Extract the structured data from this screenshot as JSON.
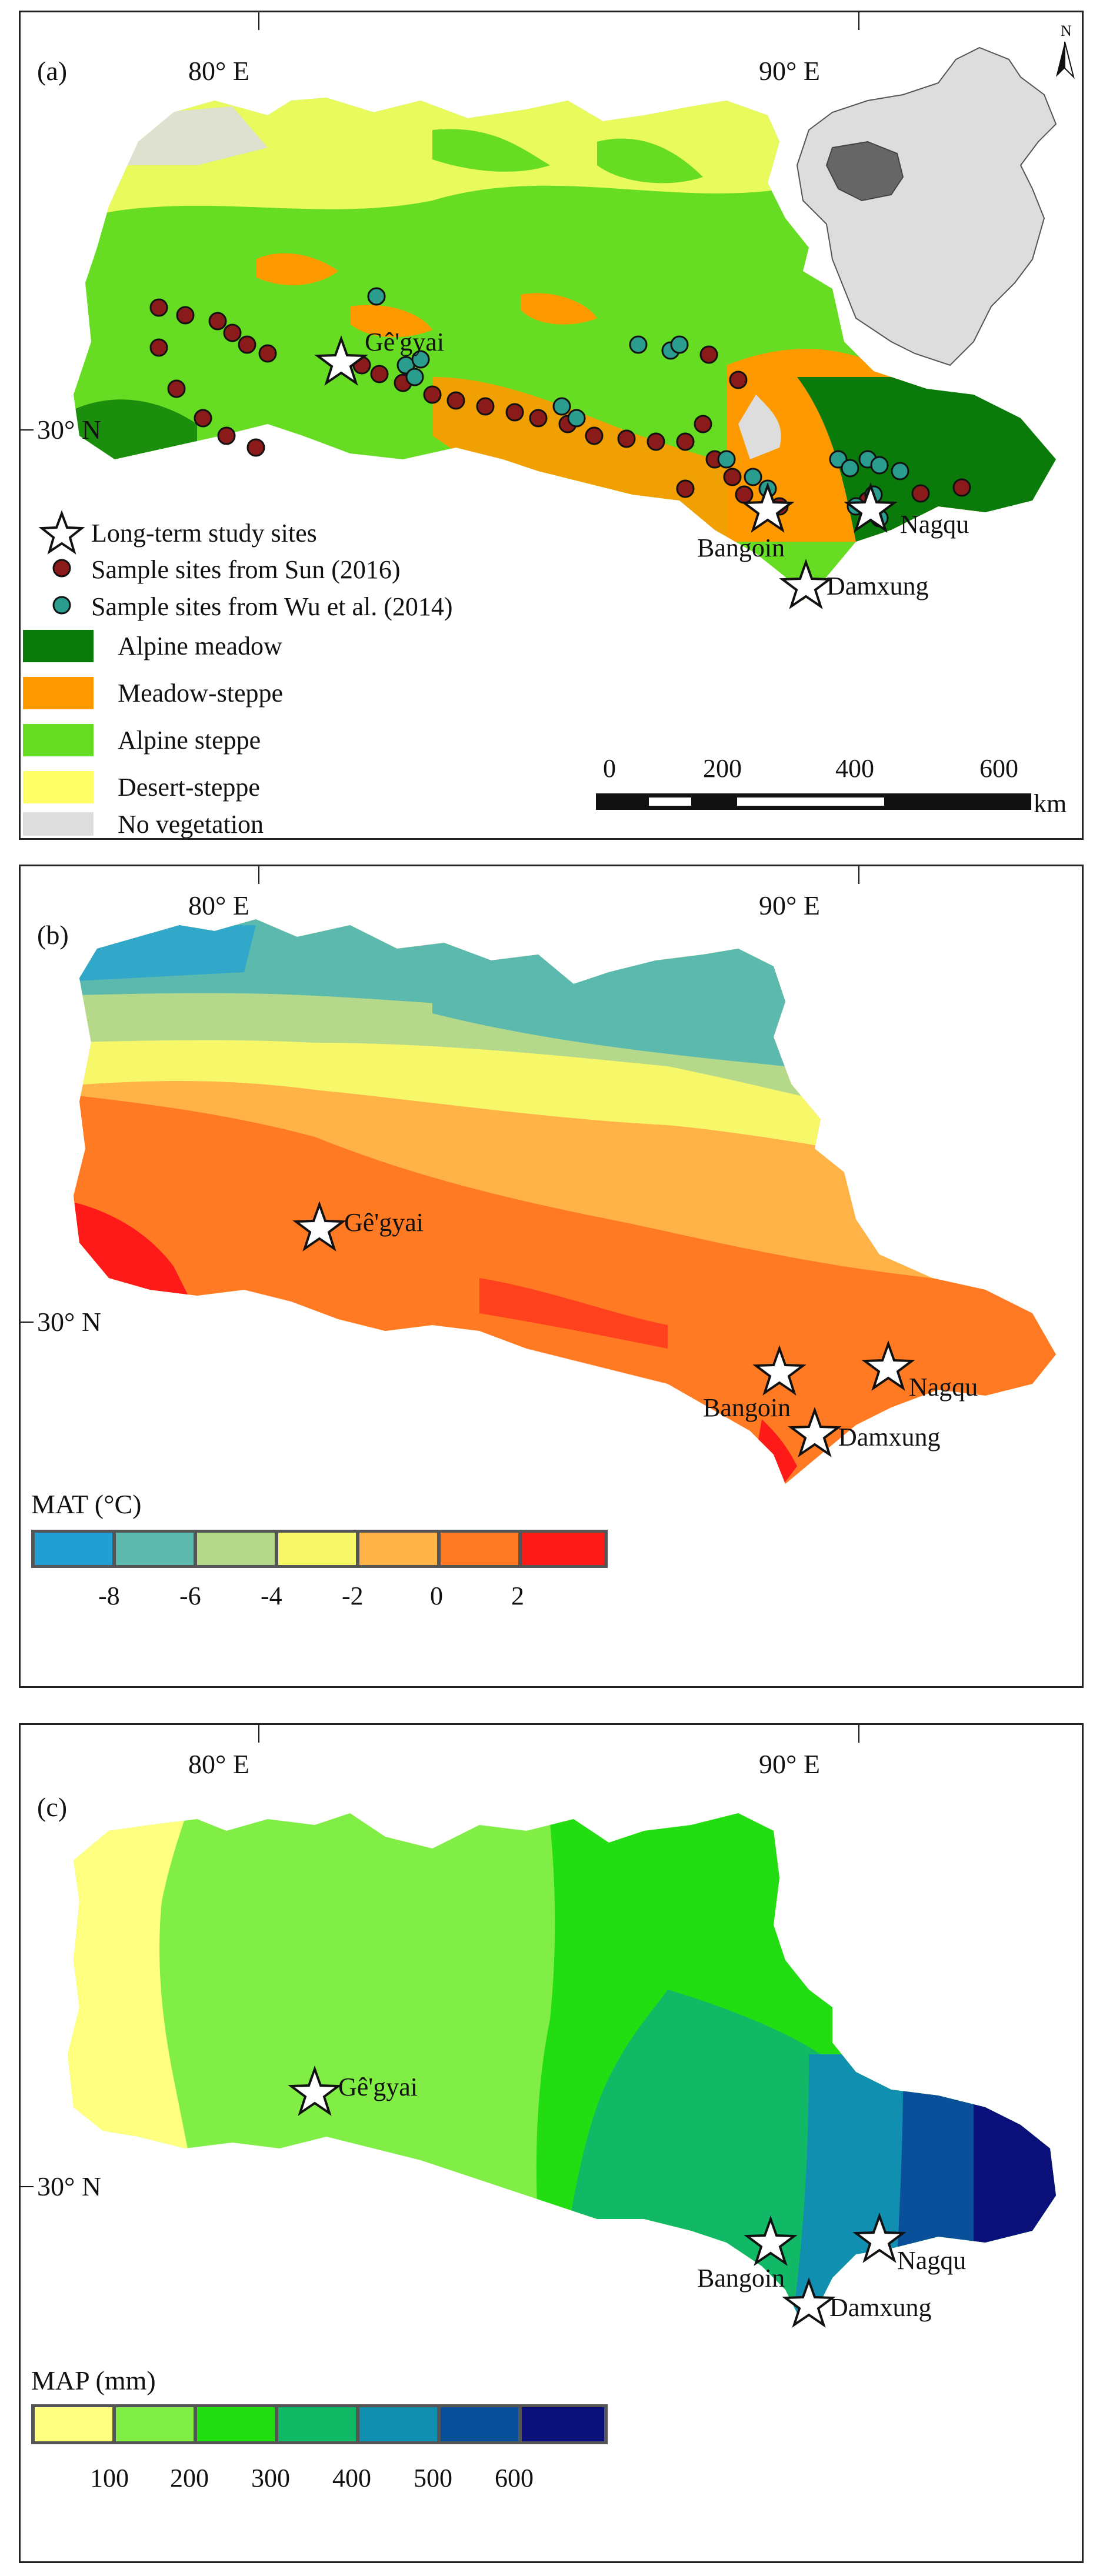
{
  "panel_a": {
    "label": "(a)",
    "lon_labels": [
      "80° E",
      "90° E"
    ],
    "lat_label": "30° N",
    "north_label": "N",
    "sites": [
      "Gê'gyai",
      "Bangoin",
      "Nagqu",
      "Damxung"
    ],
    "legend_symbols": [
      {
        "label": "Long-term study sites",
        "color": "#ffffff",
        "icon": "star-icon"
      },
      {
        "label": "Sample sites from Sun (2016)",
        "color": "#8b1a1a",
        "icon": "dark-red-circle-icon"
      },
      {
        "label": "Sample sites from Wu et al. (2014)",
        "color": "#2a9d8f",
        "icon": "teal-circle-icon"
      }
    ],
    "legend_vegetation": [
      {
        "label": "Alpine meadow",
        "color": "#0a7a0a"
      },
      {
        "label": "Meadow-steppe",
        "color": "#ff9900"
      },
      {
        "label": "Alpine steppe",
        "color": "#66dd22"
      },
      {
        "label": "Desert-steppe",
        "color": "#ffff66"
      },
      {
        "label": "No vegetation",
        "color": "#dddddd"
      }
    ],
    "scale_ticks": [
      "0",
      "200",
      "400",
      "600"
    ],
    "scale_unit": "km"
  },
  "panel_b": {
    "label": "(b)",
    "lon_labels": [
      "80° E",
      "90° E"
    ],
    "lat_label": "30° N",
    "sites": [
      "Gê'gyai",
      "Bangoin",
      "Nagqu",
      "Damxung"
    ],
    "legend_title": "MAT (°C)",
    "legend_colors": [
      "#1f9fd4",
      "#5cb9ae",
      "#b5d98a",
      "#f7f76a",
      "#ffb347",
      "#ff7a22",
      "#ff1a1a"
    ],
    "legend_ticks": [
      "-8",
      "-6",
      "-4",
      "-2",
      "0",
      "2"
    ]
  },
  "panel_c": {
    "label": "(c)",
    "lon_labels": [
      "80° E",
      "90° E"
    ],
    "lat_label": "30° N",
    "sites": [
      "Gê'gyai",
      "Bangoin",
      "Nagqu",
      "Damxung"
    ],
    "legend_title": "MAP (mm)",
    "legend_colors": [
      "#ffff80",
      "#80ee44",
      "#22dd11",
      "#11b866",
      "#118fb0",
      "#0a4f9a",
      "#0a0f7a"
    ],
    "legend_ticks": [
      "100",
      "200",
      "300",
      "400",
      "500",
      "600"
    ]
  }
}
